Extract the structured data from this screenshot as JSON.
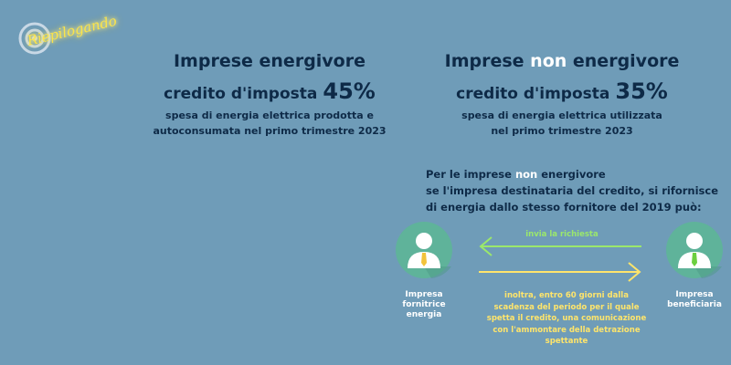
{
  "logo": {
    "text": "Riepilogando"
  },
  "left": {
    "title": "Imprese energivore",
    "credit_label": "credito d'imposta",
    "credit_value": "45%",
    "desc_line1": "spesa di energia elettrica prodotta e",
    "desc_line2": "autoconsumata nel primo trimestre 2023"
  },
  "right": {
    "title_pre": "Imprese ",
    "title_hl": "non",
    "title_post": " energivore",
    "credit_label": "credito d'imposta",
    "credit_value": "35%",
    "desc_line1": "spesa di energia elettrica utilizzata",
    "desc_line2": "nel primo trimestre 2023"
  },
  "intro": {
    "line1_pre": "Per le imprese ",
    "line1_hl": "non",
    "line1_post": " energivore",
    "line2": "se l'impresa destinataria del credito, si rifornisce",
    "line3": "di energia dallo stesso fornitore del 2019 può:"
  },
  "flow": {
    "supplier_line1": "Impresa",
    "supplier_line2": "fornitrice",
    "supplier_line3": "energia",
    "beneficiary_line1": "Impresa",
    "beneficiary_line2": "beneficiaria",
    "request_label": "invia la richiesta",
    "response_line1": "inoltra, entro 60 giorni dalla",
    "response_line2": "scadenza del periodo per il quale",
    "response_line3": "spetta il credito, una comunicazione",
    "response_line4": "con l'ammontare della detrazione",
    "response_line5": "spettante"
  },
  "colors": {
    "background": "#6f9cb8",
    "text": "#0e2a47",
    "highlight": "#ffffff",
    "request_arrow": "#9be86b",
    "response_arrow": "#ffe56b",
    "avatar_circle": "#5fb39a",
    "supplier_tie": "#f2c33b",
    "beneficiary_tie": "#6ccf3f"
  },
  "icons": {
    "logo": "target-icon",
    "supplier": "person-icon",
    "beneficiary": "person-icon"
  }
}
